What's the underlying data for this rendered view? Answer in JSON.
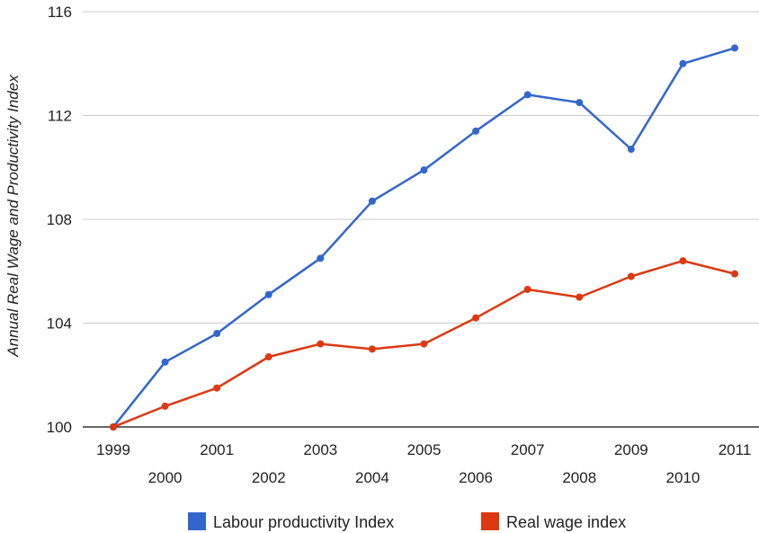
{
  "chart_data": {
    "type": "line",
    "title": "",
    "xlabel": "",
    "ylabel": "Annual Real Wage and Productivity Index",
    "x": [
      "1999",
      "2000",
      "2001",
      "2002",
      "2003",
      "2004",
      "2005",
      "2006",
      "2007",
      "2008",
      "2009",
      "2010",
      "2011"
    ],
    "series": [
      {
        "name": "Labour productivity Index",
        "color": "#3366cc",
        "values": [
          100,
          102.5,
          103.6,
          105.1,
          106.5,
          108.7,
          109.9,
          111.4,
          112.8,
          112.5,
          110.7,
          114.0,
          114.6
        ]
      },
      {
        "name": "Real wage index",
        "color": "#dc3912",
        "values": [
          100,
          100.8,
          101.5,
          102.7,
          103.2,
          103.0,
          103.2,
          104.2,
          105.3,
          105.0,
          105.8,
          106.4,
          105.9
        ]
      }
    ],
    "ylim": [
      100,
      116
    ],
    "yticks": [
      "100",
      "104",
      "108",
      "112",
      "116"
    ],
    "grid": true,
    "legend_position": "bottom"
  }
}
